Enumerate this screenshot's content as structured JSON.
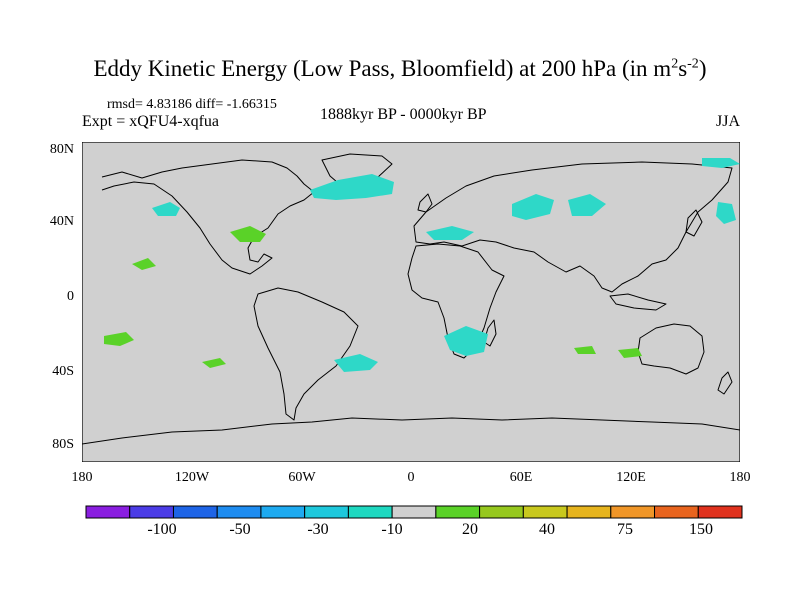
{
  "title": {
    "main": "Eddy Kinetic Energy (Low Pass, Bloomfield) at 200 hPa (in m",
    "sup1": "2",
    "mid": "s",
    "sup2": "-2",
    "end": ")"
  },
  "stats": "rmsd= 4.83186 diff= -1.66315",
  "experiment": "Expt = xQFU4-xqfua",
  "period": "1888kyr BP - 0000kyr BP",
  "season": "JJA",
  "axes": {
    "lat_ticks": [
      "80N",
      "40N",
      "0",
      "40S",
      "80S"
    ],
    "lon_ticks": [
      "180",
      "120W",
      "60W",
      "0",
      "60E",
      "120E",
      "180"
    ]
  },
  "colorbar": {
    "labels": [
      "-100",
      "-50",
      "-30",
      "-10",
      "20",
      "40",
      "75",
      "150"
    ],
    "colors": [
      "#8a1ee0",
      "#4b3ce6",
      "#1e64e6",
      "#1e8cf0",
      "#1eaaf0",
      "#1ec8dc",
      "#1ed8c0",
      "#d0d0d0",
      "#5ad228",
      "#96c81e",
      "#c8c81e",
      "#e6b41e",
      "#f09628",
      "#e8641e",
      "#e0321e"
    ]
  },
  "colors": {
    "land_ocean": "#d0d0d0",
    "negative_anomaly": "#2ed8c8",
    "positive_anomaly": "#5ad228"
  }
}
